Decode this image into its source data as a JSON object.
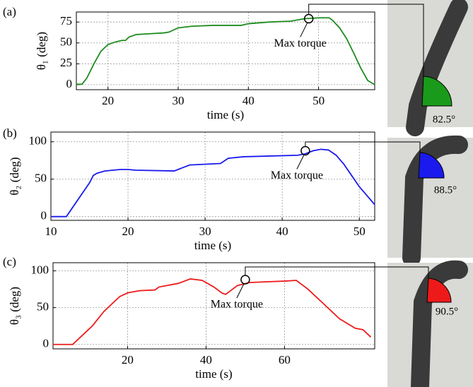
{
  "chart_data": [
    {
      "type": "line",
      "panel": "(a)",
      "xlabel": "time (s)",
      "ylabel": "θ₁ (deg)",
      "xlim": [
        15.5,
        58
      ],
      "xticks": [
        20,
        30,
        40,
        50
      ],
      "ylim": [
        -6,
        87
      ],
      "yticks": [
        0,
        25,
        50,
        75
      ],
      "grid": true,
      "series": [
        {
          "color": "#1f8c1f",
          "x": [
            15.5,
            16.3,
            17,
            18,
            19,
            20,
            21,
            22,
            22.5,
            23,
            24,
            26,
            28,
            28.7,
            30,
            32,
            35,
            38,
            39,
            40,
            43,
            46,
            48,
            50,
            51.5,
            52,
            53,
            54,
            55,
            56,
            57,
            58
          ],
          "values": [
            0.5,
            0.5,
            8,
            25,
            40,
            48,
            51,
            53,
            53,
            57,
            60,
            61,
            62,
            63,
            68,
            70,
            71,
            71,
            71,
            73,
            75,
            76,
            79,
            80,
            80,
            77,
            68,
            55,
            38,
            20,
            5,
            0
          ]
        }
      ],
      "annotation": {
        "text": "Max torque",
        "x": 48.6,
        "y": 79
      },
      "photo_angle_label": "82.5°"
    },
    {
      "type": "line",
      "panel": "(b)",
      "xlabel": "time (s)",
      "ylabel": "θ₂ (deg)",
      "xlim": [
        10,
        52
      ],
      "xticks": [
        10,
        20,
        30,
        40,
        50
      ],
      "ylim": [
        -5,
        113
      ],
      "yticks": [
        0,
        50,
        100
      ],
      "grid": true,
      "series": [
        {
          "color": "#1a1aee",
          "x": [
            10,
            12,
            13,
            14,
            15,
            15.5,
            16,
            17,
            19,
            20,
            21,
            26,
            27,
            28,
            32,
            33,
            35,
            42,
            43,
            44,
            45,
            46,
            47,
            48,
            49,
            50,
            51,
            52
          ],
          "values": [
            0,
            0,
            15,
            30,
            45,
            55,
            58,
            61,
            63,
            63,
            62,
            61,
            65,
            69,
            71,
            78,
            80,
            82,
            84,
            88,
            90,
            89,
            82,
            70,
            55,
            40,
            28,
            16
          ]
        }
      ],
      "annotation": {
        "text": "Max torque",
        "x": 43,
        "y": 88
      },
      "photo_angle_label": "88.5°"
    },
    {
      "type": "line",
      "panel": "(c)",
      "xlabel": "time (s)",
      "ylabel": "θ₃ (deg)",
      "xlim": [
        1,
        83
      ],
      "xticks": [
        20,
        40,
        60
      ],
      "ylim": [
        -6,
        111
      ],
      "yticks": [
        0,
        50,
        100
      ],
      "grid": true,
      "series": [
        {
          "color": "#ee1a1a",
          "x": [
            1,
            6,
            8,
            11,
            14,
            16,
            18,
            20,
            23,
            27,
            28,
            33,
            36,
            39,
            42,
            44,
            45,
            46,
            48,
            51,
            55,
            60,
            63,
            66,
            70,
            74,
            78,
            80,
            82
          ],
          "values": [
            0,
            0,
            10,
            25,
            45,
            55,
            65,
            70,
            73,
            74,
            78,
            83,
            89,
            87,
            78,
            70,
            68,
            72,
            80,
            84,
            85,
            86,
            87,
            75,
            55,
            35,
            22,
            20,
            10
          ]
        }
      ],
      "annotation": {
        "text": "Max torque",
        "x": 50,
        "y": 88
      },
      "photo_angle_label": "90.5°"
    }
  ]
}
